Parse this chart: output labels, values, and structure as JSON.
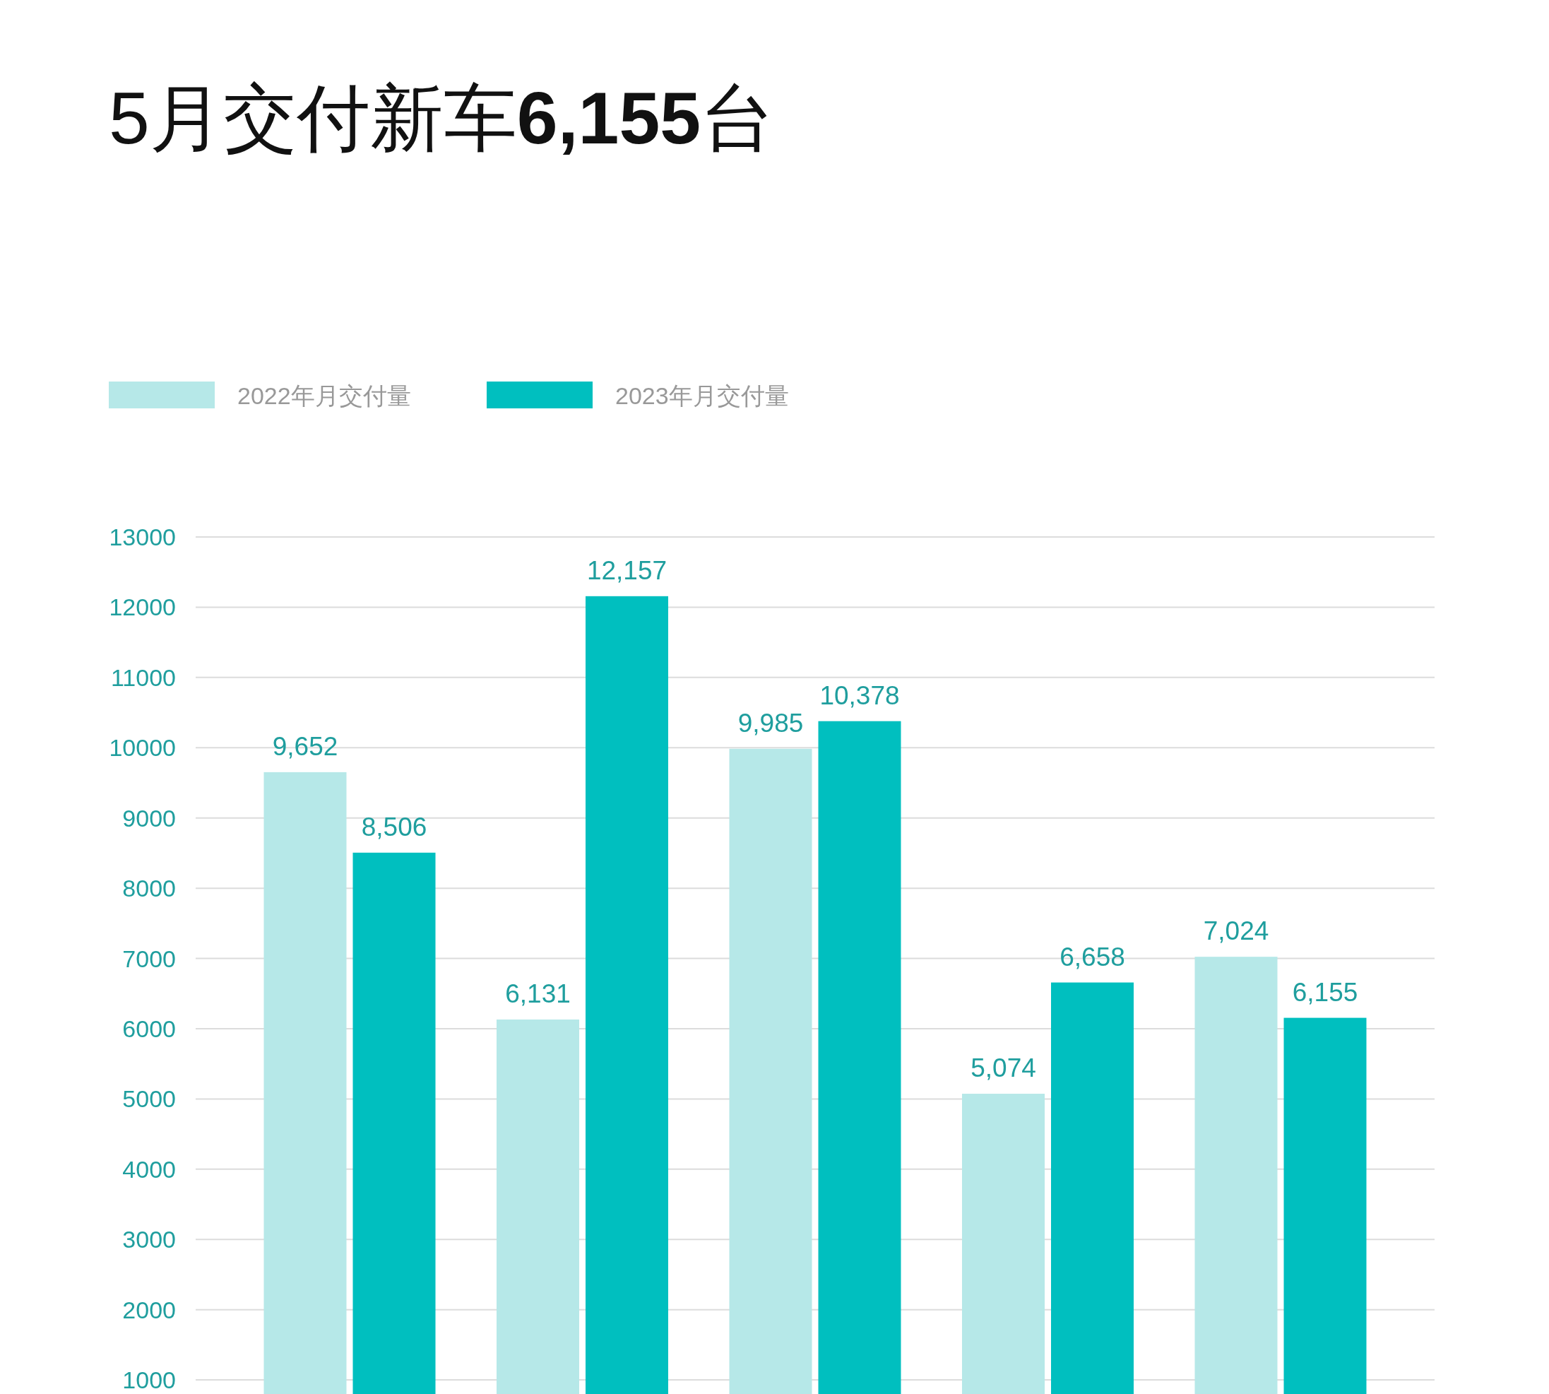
{
  "chart_data": {
    "type": "bar",
    "title": "5月交付新车6,155台",
    "categories": [
      null,
      null,
      null,
      null,
      null
    ],
    "series": [
      {
        "name": "2022年月交付量",
        "color": "#b6e8e8",
        "values": [
          9652,
          6131,
          9985,
          5074,
          7024
        ],
        "value_labels": [
          "9,652",
          "6,131",
          "9,985",
          "5,074",
          "7,024"
        ]
      },
      {
        "name": "2023年月交付量",
        "color": "#00bfbf",
        "values": [
          8506,
          12157,
          10378,
          6658,
          6155
        ],
        "value_labels": [
          "8,506",
          "12,157",
          "10,378",
          "6,658",
          "6,155"
        ]
      }
    ],
    "ylim": [
      800,
      13000
    ],
    "yticks": [
      1000,
      2000,
      3000,
      4000,
      5000,
      6000,
      7000,
      8000,
      9000,
      10000,
      11000,
      12000,
      13000
    ],
    "grid": "y",
    "legend": "top left"
  }
}
